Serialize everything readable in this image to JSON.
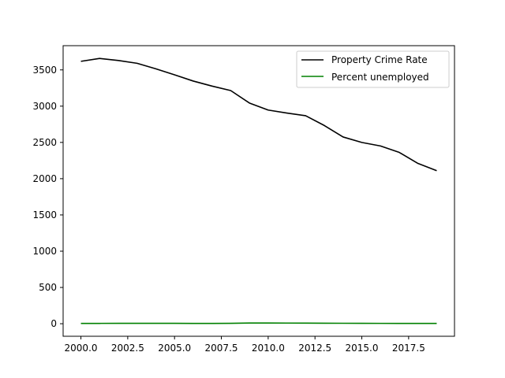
{
  "chart_data": {
    "type": "line",
    "title": "",
    "xlabel": "",
    "ylabel": "",
    "x": [
      2000,
      2001,
      2002,
      2003,
      2004,
      2005,
      2006,
      2007,
      2008,
      2009,
      2010,
      2011,
      2012,
      2013,
      2014,
      2015,
      2016,
      2017,
      2018,
      2019
    ],
    "series": [
      {
        "name": "Property Crime Rate",
        "color": "#000000",
        "values": [
          3618,
          3658,
          3630,
          3591,
          3515,
          3432,
          3346,
          3277,
          3215,
          3043,
          2946,
          2905,
          2868,
          2733,
          2575,
          2500,
          2451,
          2362,
          2210,
          2110
        ]
      },
      {
        "name": "Percent unemployed",
        "color": "#008000",
        "values": [
          4.0,
          4.7,
          5.8,
          6.0,
          5.5,
          5.1,
          4.6,
          4.6,
          5.8,
          9.3,
          9.6,
          8.9,
          8.1,
          7.4,
          6.2,
          5.3,
          4.9,
          4.4,
          3.9,
          3.7
        ]
      }
    ],
    "xlim": [
      1999.05,
      2019.95
    ],
    "ylim": [
      -173,
      3834
    ],
    "xticks": [
      2000.0,
      2002.5,
      2005.0,
      2007.5,
      2010.0,
      2012.5,
      2015.0,
      2017.5
    ],
    "xtick_labels": [
      "2000.0",
      "2002.5",
      "2005.0",
      "2007.5",
      "2010.0",
      "2012.5",
      "2015.0",
      "2017.5"
    ],
    "yticks": [
      0,
      500,
      1000,
      1500,
      2000,
      2500,
      3000,
      3500
    ],
    "ytick_labels": [
      "0",
      "500",
      "1000",
      "1500",
      "2000",
      "2500",
      "3000",
      "3500"
    ],
    "grid": false,
    "legend_position": "top-right"
  }
}
